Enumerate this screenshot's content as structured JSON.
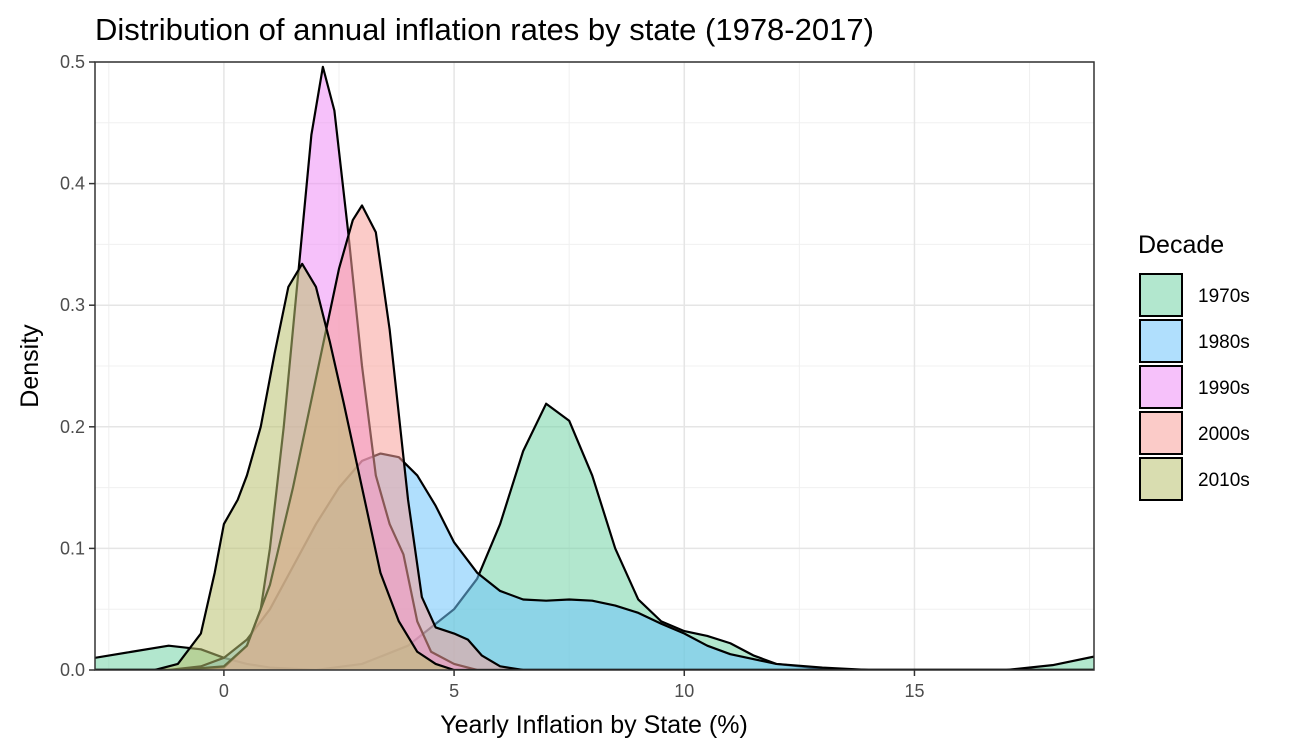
{
  "chart_data": {
    "type": "area",
    "subtype": "density",
    "title": "Distribution of annual inflation rates by state (1978-2017)",
    "xlabel": "Yearly Inflation by State (%)",
    "ylabel": "Density",
    "xlim": [
      -2.8,
      18.9
    ],
    "ylim": [
      0,
      0.5
    ],
    "x_ticks": [
      0,
      5,
      10,
      15
    ],
    "x_tick_labels": [
      "0",
      "5",
      "10",
      "15"
    ],
    "y_ticks": [
      0,
      0.1,
      0.2,
      0.3,
      0.4,
      0.5
    ],
    "y_tick_labels": [
      "0.0",
      "0.1",
      "0.2",
      "0.3",
      "0.4",
      "0.5"
    ],
    "grid": true,
    "legend": {
      "title": "Decade",
      "position": "right"
    },
    "series": [
      {
        "name": "1970s",
        "color": "#73D4A6",
        "points": [
          [
            -2.8,
            0.01
          ],
          [
            -2.0,
            0.015
          ],
          [
            -1.2,
            0.02
          ],
          [
            -0.5,
            0.017
          ],
          [
            0.0,
            0.01
          ],
          [
            0.5,
            0.005
          ],
          [
            1.0,
            0.002
          ],
          [
            2.0,
            0.0
          ],
          [
            3.0,
            0.005
          ],
          [
            4.0,
            0.02
          ],
          [
            5.0,
            0.05
          ],
          [
            5.5,
            0.075
          ],
          [
            6.0,
            0.12
          ],
          [
            6.5,
            0.18
          ],
          [
            7.0,
            0.219
          ],
          [
            7.5,
            0.205
          ],
          [
            8.0,
            0.16
          ],
          [
            8.5,
            0.1
          ],
          [
            9.0,
            0.058
          ],
          [
            9.5,
            0.04
          ],
          [
            10.0,
            0.032
          ],
          [
            10.5,
            0.028
          ],
          [
            11.0,
            0.022
          ],
          [
            11.5,
            0.012
          ],
          [
            12.0,
            0.005
          ],
          [
            13.0,
            0.001
          ],
          [
            14.0,
            0.0
          ],
          [
            16.0,
            0.0
          ],
          [
            17.0,
            0.0
          ],
          [
            18.0,
            0.004
          ],
          [
            18.9,
            0.011
          ]
        ]
      },
      {
        "name": "1980s",
        "color": "#6FC4FC",
        "points": [
          [
            -2.8,
            0.0
          ],
          [
            -1.2,
            0.0
          ],
          [
            -0.5,
            0.003
          ],
          [
            0.0,
            0.01
          ],
          [
            0.5,
            0.025
          ],
          [
            1.0,
            0.05
          ],
          [
            1.5,
            0.085
          ],
          [
            2.0,
            0.12
          ],
          [
            2.5,
            0.15
          ],
          [
            3.0,
            0.172
          ],
          [
            3.4,
            0.178
          ],
          [
            3.8,
            0.175
          ],
          [
            4.2,
            0.16
          ],
          [
            4.6,
            0.135
          ],
          [
            5.0,
            0.105
          ],
          [
            5.5,
            0.08
          ],
          [
            6.0,
            0.065
          ],
          [
            6.5,
            0.058
          ],
          [
            7.0,
            0.057
          ],
          [
            7.5,
            0.058
          ],
          [
            8.0,
            0.057
          ],
          [
            8.5,
            0.053
          ],
          [
            9.0,
            0.047
          ],
          [
            9.5,
            0.038
          ],
          [
            10.0,
            0.03
          ],
          [
            10.5,
            0.02
          ],
          [
            11.0,
            0.013
          ],
          [
            12.0,
            0.005
          ],
          [
            13.0,
            0.002
          ],
          [
            14.0,
            0.0
          ],
          [
            18.9,
            0.0
          ]
        ]
      },
      {
        "name": "1990s",
        "color": "#EE8EF5",
        "points": [
          [
            -2.8,
            0.0
          ],
          [
            -1.0,
            0.0
          ],
          [
            0.0,
            0.002
          ],
          [
            0.5,
            0.02
          ],
          [
            0.8,
            0.05
          ],
          [
            1.0,
            0.1
          ],
          [
            1.3,
            0.2
          ],
          [
            1.6,
            0.32
          ],
          [
            1.9,
            0.44
          ],
          [
            2.15,
            0.496
          ],
          [
            2.4,
            0.46
          ],
          [
            2.7,
            0.36
          ],
          [
            3.0,
            0.25
          ],
          [
            3.3,
            0.16
          ],
          [
            3.6,
            0.12
          ],
          [
            3.9,
            0.095
          ],
          [
            4.2,
            0.04
          ],
          [
            4.5,
            0.015
          ],
          [
            5.0,
            0.005
          ],
          [
            5.5,
            0.0
          ],
          [
            18.9,
            0.0
          ]
        ]
      },
      {
        "name": "2000s",
        "color": "#F7A19A",
        "points": [
          [
            -2.8,
            0.0
          ],
          [
            -1.0,
            0.0
          ],
          [
            0.0,
            0.003
          ],
          [
            0.5,
            0.02
          ],
          [
            1.0,
            0.07
          ],
          [
            1.5,
            0.15
          ],
          [
            2.0,
            0.24
          ],
          [
            2.5,
            0.33
          ],
          [
            2.8,
            0.37
          ],
          [
            3.0,
            0.382
          ],
          [
            3.3,
            0.36
          ],
          [
            3.6,
            0.28
          ],
          [
            4.0,
            0.14
          ],
          [
            4.3,
            0.06
          ],
          [
            4.6,
            0.035
          ],
          [
            5.0,
            0.03
          ],
          [
            5.3,
            0.025
          ],
          [
            5.6,
            0.012
          ],
          [
            6.0,
            0.003
          ],
          [
            6.5,
            0.0
          ],
          [
            18.9,
            0.0
          ]
        ]
      },
      {
        "name": "2010s",
        "color": "#BAC16F",
        "points": [
          [
            -2.8,
            0.0
          ],
          [
            -1.5,
            0.0
          ],
          [
            -1.0,
            0.005
          ],
          [
            -0.5,
            0.03
          ],
          [
            -0.2,
            0.08
          ],
          [
            0.0,
            0.12
          ],
          [
            0.3,
            0.14
          ],
          [
            0.5,
            0.16
          ],
          [
            0.8,
            0.2
          ],
          [
            1.1,
            0.26
          ],
          [
            1.4,
            0.315
          ],
          [
            1.7,
            0.334
          ],
          [
            2.0,
            0.315
          ],
          [
            2.3,
            0.27
          ],
          [
            2.6,
            0.22
          ],
          [
            3.0,
            0.15
          ],
          [
            3.4,
            0.08
          ],
          [
            3.8,
            0.04
          ],
          [
            4.2,
            0.015
          ],
          [
            4.6,
            0.005
          ],
          [
            5.0,
            0.0
          ],
          [
            18.9,
            0.0
          ]
        ]
      }
    ]
  }
}
